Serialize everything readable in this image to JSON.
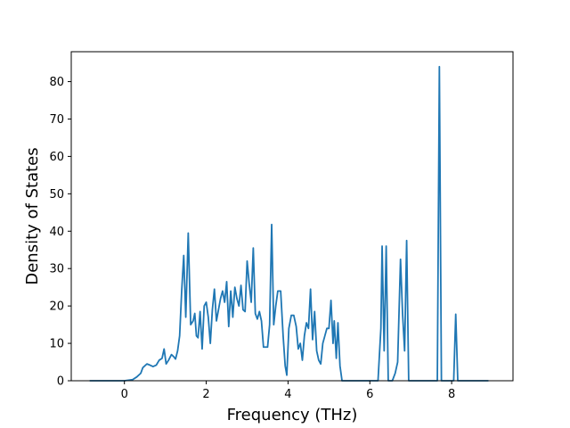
{
  "chart_data": {
    "type": "line",
    "title": "",
    "xlabel": "Frequency (THz)",
    "ylabel": "Density of States",
    "xlim": [
      -1.3,
      9.5
    ],
    "ylim": [
      0,
      88
    ],
    "xticks": [
      0,
      2,
      4,
      6,
      8
    ],
    "yticks": [
      0,
      10,
      20,
      30,
      40,
      50,
      60,
      70,
      80
    ],
    "grid": false,
    "legend": "none",
    "series": [
      {
        "color": "#1f77b4",
        "points": [
          [
            -0.85,
            0
          ],
          [
            0.0,
            0
          ],
          [
            0.2,
            0.3
          ],
          [
            0.3,
            1
          ],
          [
            0.4,
            2
          ],
          [
            0.45,
            3.5
          ],
          [
            0.55,
            4.5
          ],
          [
            0.62,
            4.2
          ],
          [
            0.7,
            3.8
          ],
          [
            0.78,
            4.2
          ],
          [
            0.85,
            5.5
          ],
          [
            0.92,
            6
          ],
          [
            0.97,
            8.5
          ],
          [
            1.02,
            4.5
          ],
          [
            1.08,
            5.5
          ],
          [
            1.15,
            7
          ],
          [
            1.2,
            6.5
          ],
          [
            1.25,
            5.8
          ],
          [
            1.3,
            8
          ],
          [
            1.35,
            12
          ],
          [
            1.4,
            24
          ],
          [
            1.45,
            33.5
          ],
          [
            1.5,
            17
          ],
          [
            1.56,
            39.5
          ],
          [
            1.62,
            15
          ],
          [
            1.68,
            16
          ],
          [
            1.72,
            18
          ],
          [
            1.76,
            12
          ],
          [
            1.8,
            11.5
          ],
          [
            1.85,
            18.5
          ],
          [
            1.9,
            8.5
          ],
          [
            1.95,
            20
          ],
          [
            2.0,
            21
          ],
          [
            2.05,
            17
          ],
          [
            2.1,
            10
          ],
          [
            2.15,
            19
          ],
          [
            2.2,
            24.5
          ],
          [
            2.25,
            16
          ],
          [
            2.3,
            19
          ],
          [
            2.35,
            22
          ],
          [
            2.4,
            24
          ],
          [
            2.45,
            21
          ],
          [
            2.5,
            26.5
          ],
          [
            2.55,
            14.5
          ],
          [
            2.6,
            24
          ],
          [
            2.65,
            17
          ],
          [
            2.7,
            25
          ],
          [
            2.75,
            22
          ],
          [
            2.8,
            20
          ],
          [
            2.85,
            25.5
          ],
          [
            2.9,
            19
          ],
          [
            2.95,
            18.5
          ],
          [
            3.0,
            32
          ],
          [
            3.05,
            26
          ],
          [
            3.1,
            21
          ],
          [
            3.15,
            35.5
          ],
          [
            3.2,
            18
          ],
          [
            3.25,
            16.5
          ],
          [
            3.3,
            18.5
          ],
          [
            3.35,
            16
          ],
          [
            3.4,
            9
          ],
          [
            3.5,
            9
          ],
          [
            3.55,
            15
          ],
          [
            3.6,
            41.8
          ],
          [
            3.65,
            15
          ],
          [
            3.7,
            20
          ],
          [
            3.75,
            24
          ],
          [
            3.82,
            24
          ],
          [
            3.88,
            12
          ],
          [
            3.93,
            4
          ],
          [
            3.97,
            1.5
          ],
          [
            4.02,
            14
          ],
          [
            4.08,
            17.5
          ],
          [
            4.14,
            17.5
          ],
          [
            4.2,
            14.5
          ],
          [
            4.25,
            8.5
          ],
          [
            4.3,
            10
          ],
          [
            4.35,
            5.5
          ],
          [
            4.4,
            12
          ],
          [
            4.45,
            15.5
          ],
          [
            4.5,
            14
          ],
          [
            4.55,
            24.5
          ],
          [
            4.6,
            11
          ],
          [
            4.65,
            18.5
          ],
          [
            4.7,
            8
          ],
          [
            4.75,
            5.5
          ],
          [
            4.8,
            4.5
          ],
          [
            4.85,
            10
          ],
          [
            4.9,
            12
          ],
          [
            4.95,
            14
          ],
          [
            5.0,
            14
          ],
          [
            5.05,
            21.5
          ],
          [
            5.1,
            10
          ],
          [
            5.13,
            16
          ],
          [
            5.18,
            6
          ],
          [
            5.22,
            15.5
          ],
          [
            5.27,
            4
          ],
          [
            5.32,
            0
          ],
          [
            5.5,
            0
          ],
          [
            6.2,
            0
          ],
          [
            6.27,
            14
          ],
          [
            6.3,
            36
          ],
          [
            6.35,
            8
          ],
          [
            6.4,
            36
          ],
          [
            6.45,
            0
          ],
          [
            6.55,
            0
          ],
          [
            6.62,
            2
          ],
          [
            6.68,
            5
          ],
          [
            6.75,
            32.5
          ],
          [
            6.8,
            18
          ],
          [
            6.85,
            8
          ],
          [
            6.9,
            37.5
          ],
          [
            6.95,
            0
          ],
          [
            7.65,
            0
          ],
          [
            7.7,
            84
          ],
          [
            7.75,
            0
          ],
          [
            8.05,
            0
          ],
          [
            8.1,
            17.8
          ],
          [
            8.15,
            0
          ],
          [
            8.9,
            0
          ]
        ]
      }
    ]
  }
}
